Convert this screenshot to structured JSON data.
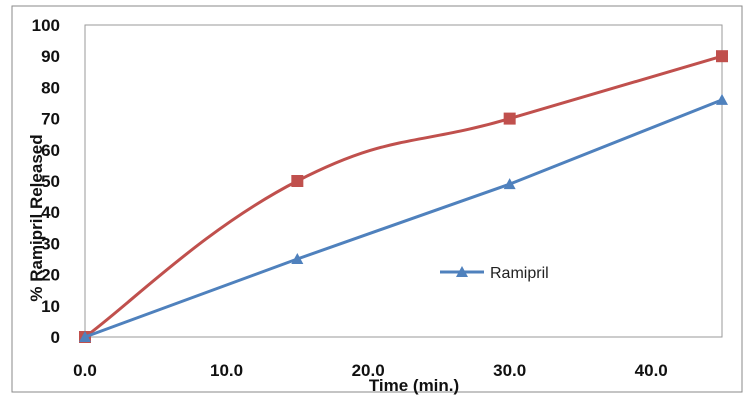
{
  "chart_data": {
    "type": "line",
    "title": "",
    "xlabel": "Time (min.)",
    "ylabel": "% Ramipril Released",
    "xlim": [
      0,
      45
    ],
    "ylim": [
      0,
      100
    ],
    "x_ticks": [
      0,
      10,
      20,
      30,
      40
    ],
    "x_tick_labels": [
      "0.0",
      "10.0",
      "20.0",
      "30.0",
      "40.0"
    ],
    "y_ticks": [
      0,
      10,
      20,
      30,
      40,
      50,
      60,
      70,
      80,
      90,
      100
    ],
    "y_tick_labels": [
      "0",
      "10",
      "20",
      "30",
      "40",
      "50",
      "60",
      "70",
      "80",
      "90",
      "100"
    ],
    "grid": false,
    "legend_position": "center-right",
    "series": [
      {
        "name": "",
        "color": "#c0504d",
        "marker": "square",
        "smooth": true,
        "x": [
          0,
          15,
          30,
          45
        ],
        "y": [
          0,
          50,
          70,
          90
        ]
      },
      {
        "name": "Ramipril",
        "color": "#4f81bd",
        "marker": "triangle",
        "smooth": false,
        "x": [
          0,
          15,
          30,
          45
        ],
        "y": [
          0,
          25,
          49,
          76
        ]
      }
    ]
  }
}
